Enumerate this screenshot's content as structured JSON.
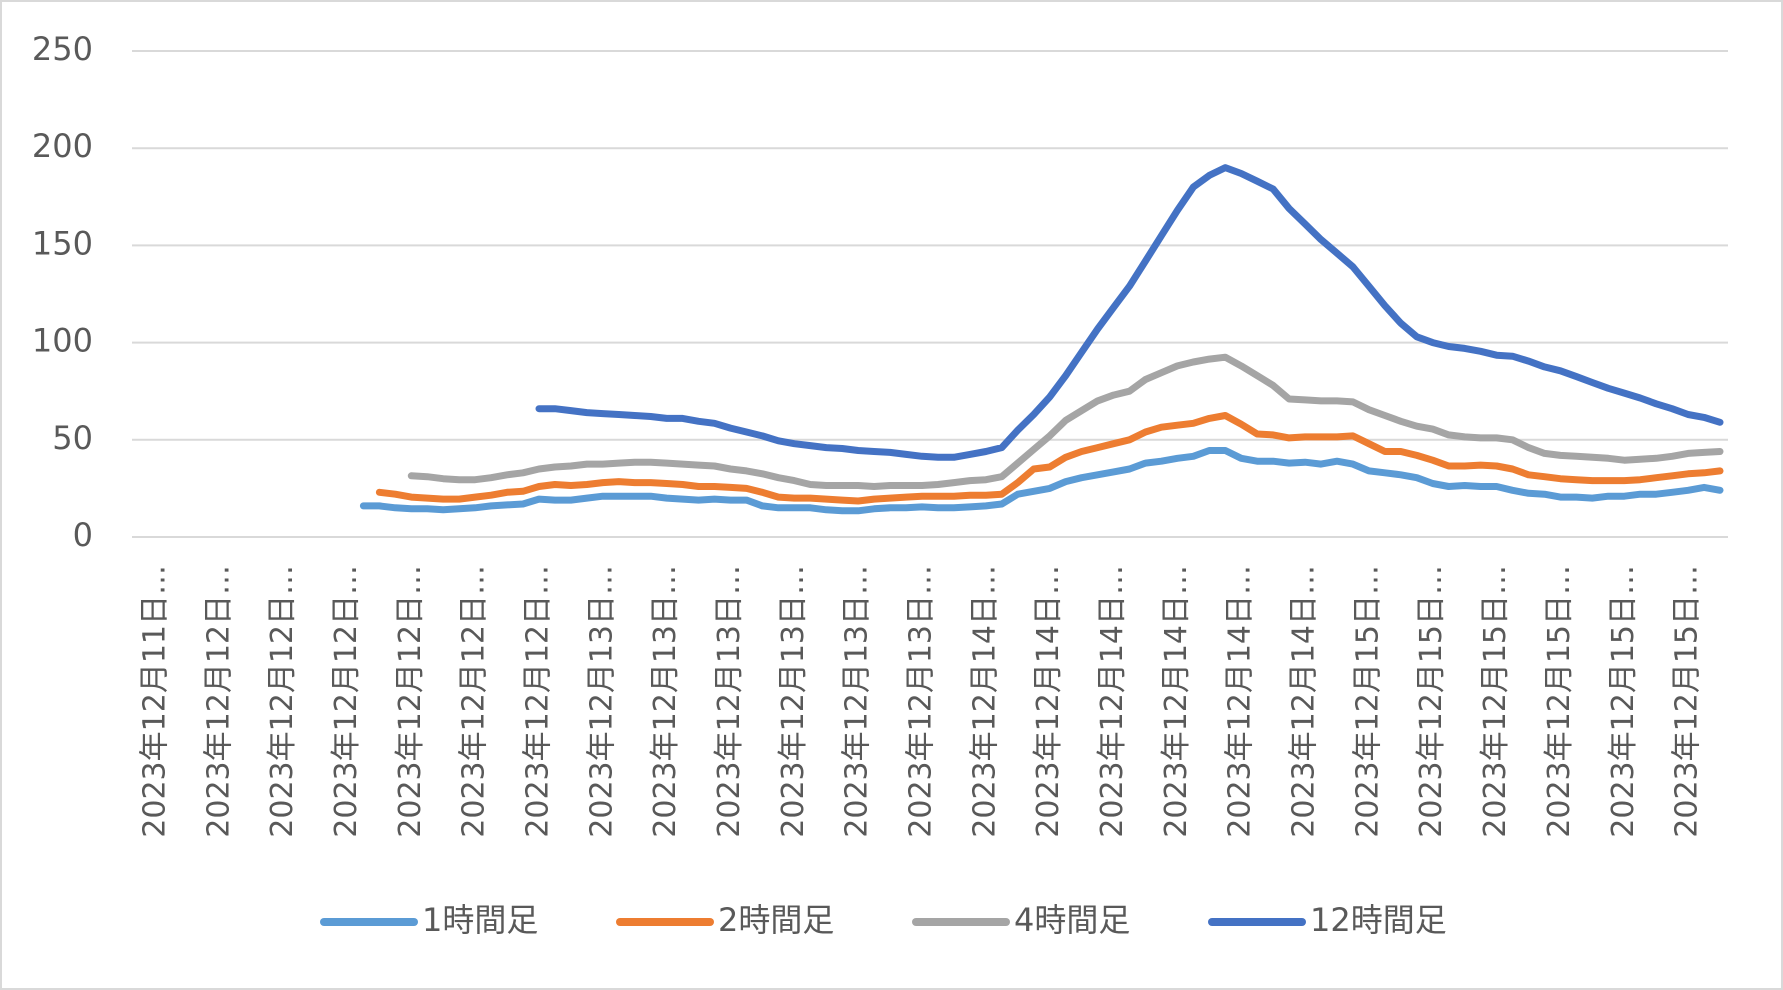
{
  "chart_data": {
    "type": "line",
    "categories": [
      null,
      "2023年12月11日…",
      null,
      null,
      null,
      "2023年12月12日…",
      null,
      null,
      null,
      "2023年12月12日…",
      null,
      null,
      null,
      "2023年12月12日…",
      null,
      null,
      null,
      "2023年12月12日…",
      null,
      null,
      null,
      "2023年12月12日…",
      null,
      null,
      null,
      "2023年12月12日…",
      null,
      null,
      null,
      "2023年12月13日…",
      null,
      null,
      null,
      "2023年12月13日…",
      null,
      null,
      null,
      "2023年12月13日…",
      null,
      null,
      null,
      "2023年12月13日…",
      null,
      null,
      null,
      "2023年12月13日…",
      null,
      null,
      null,
      "2023年12月13日…",
      null,
      null,
      null,
      "2023年12月14日…",
      null,
      null,
      null,
      "2023年12月14日…",
      null,
      null,
      null,
      "2023年12月14日…",
      null,
      null,
      null,
      "2023年12月14日…",
      null,
      null,
      null,
      "2023年12月14日…",
      null,
      null,
      null,
      "2023年12月14日…",
      null,
      null,
      null,
      "2023年12月15日…",
      null,
      null,
      null,
      "2023年12月15日…",
      null,
      null,
      null,
      "2023年12月15日…",
      null,
      null,
      null,
      "2023年12月15日…",
      null,
      null,
      null,
      "2023年12月15日…",
      null,
      null,
      null,
      "2023年12月15日…",
      null,
      null
    ],
    "series": [
      {
        "name": "1時間足",
        "color": "#5b9bd5",
        "values": [
          null,
          null,
          null,
          null,
          null,
          null,
          null,
          null,
          null,
          null,
          null,
          null,
          null,
          null,
          16,
          16,
          15,
          14.5,
          14.5,
          14,
          14.5,
          15,
          16,
          16.5,
          17,
          19.5,
          19,
          19,
          20,
          21,
          21,
          21,
          21,
          20,
          19.5,
          19,
          19.5,
          19,
          19,
          16,
          15,
          15,
          15,
          14,
          13.5,
          13.5,
          14.5,
          15,
          15,
          15.5,
          15,
          15,
          15.5,
          16,
          17,
          22,
          23.5,
          25,
          28.5,
          30.5,
          32,
          33.5,
          35,
          38,
          39,
          40.5,
          41.5,
          44.5,
          44.5,
          40.5,
          39,
          39,
          38,
          38.5,
          37.5,
          39,
          37.5,
          34,
          33,
          32,
          30.5,
          27.5,
          26,
          26.5,
          26,
          26,
          24,
          22.5,
          22,
          20.5,
          20.5,
          20,
          21,
          21,
          22,
          22,
          23,
          24,
          25.5,
          24
        ]
      },
      {
        "name": "2時間足",
        "color": "#ed7d31",
        "values": [
          null,
          null,
          null,
          null,
          null,
          null,
          null,
          null,
          null,
          null,
          null,
          null,
          null,
          null,
          null,
          23,
          22,
          20.5,
          20,
          19.5,
          19.5,
          20.5,
          21.5,
          23,
          23.5,
          26,
          27,
          26.5,
          27,
          28,
          28.5,
          28,
          28,
          27.5,
          27,
          26,
          26,
          25.5,
          25,
          23,
          20.5,
          20,
          20,
          19.5,
          19,
          18.5,
          19.5,
          20,
          20.5,
          21,
          21,
          21,
          21.5,
          21.5,
          22,
          28,
          35,
          36,
          41,
          44,
          46,
          48,
          50,
          54,
          56.5,
          57.5,
          58.5,
          61,
          62.5,
          58,
          53,
          52.5,
          51,
          51.5,
          51.5,
          51.5,
          52,
          48,
          44,
          44,
          42,
          39.5,
          36.5,
          36.5,
          37,
          36.5,
          35,
          32,
          31,
          30,
          29.5,
          29,
          29,
          29,
          29.5,
          30.5,
          31.5,
          32.5,
          33,
          34
        ]
      },
      {
        "name": "4時間足",
        "color": "#a5a5a5",
        "values": [
          null,
          null,
          null,
          null,
          null,
          null,
          null,
          null,
          null,
          null,
          null,
          null,
          null,
          null,
          null,
          null,
          null,
          31.5,
          31,
          30,
          29.5,
          29.5,
          30.5,
          32,
          33,
          35,
          36,
          36.5,
          37.5,
          37.5,
          38,
          38.5,
          38.5,
          38,
          37.5,
          37,
          36.5,
          35,
          34,
          32.5,
          30.5,
          29,
          27,
          26.5,
          26.5,
          26.5,
          26,
          26.5,
          26.5,
          26.5,
          27,
          28,
          29,
          29.5,
          31,
          38,
          45,
          52,
          60,
          65,
          70,
          73,
          75,
          81,
          84.5,
          88,
          90,
          91.5,
          92.5,
          88,
          83,
          78,
          71,
          70.5,
          70,
          70,
          69.5,
          65.5,
          62.5,
          59.5,
          57,
          55.5,
          52.5,
          51.5,
          51,
          51,
          50,
          46,
          43,
          42,
          41.5,
          41,
          40.5,
          39.5,
          40,
          40.5,
          41.5,
          43,
          43.5,
          44
        ]
      },
      {
        "name": "12時間足",
        "color": "#4472c4",
        "values": [
          null,
          null,
          null,
          null,
          null,
          null,
          null,
          null,
          null,
          null,
          null,
          null,
          null,
          null,
          null,
          null,
          null,
          null,
          null,
          null,
          null,
          null,
          null,
          null,
          null,
          66,
          66,
          65,
          64,
          63.5,
          63,
          62.5,
          62,
          61,
          61,
          59.5,
          58.5,
          56,
          54,
          52,
          49.5,
          48,
          47,
          46,
          45.5,
          44.5,
          44,
          43.5,
          42.5,
          41.5,
          41,
          41,
          42.5,
          44,
          46,
          55,
          63,
          72,
          83,
          95,
          107,
          118,
          129,
          142,
          155,
          168,
          180,
          186,
          190,
          187,
          183,
          179,
          169,
          161,
          153,
          146,
          139,
          129,
          119,
          110,
          103,
          100,
          98,
          97,
          95.5,
          93.5,
          93,
          90.5,
          87.5,
          85.5,
          82.5,
          79.5,
          76.5,
          74,
          71.5,
          68.5,
          66,
          63,
          61.5,
          59
        ]
      }
    ],
    "ylim": [
      0,
      250
    ],
    "yticks": [
      0,
      50,
      100,
      150,
      200,
      250
    ],
    "grid": true,
    "legend": "bottom"
  }
}
